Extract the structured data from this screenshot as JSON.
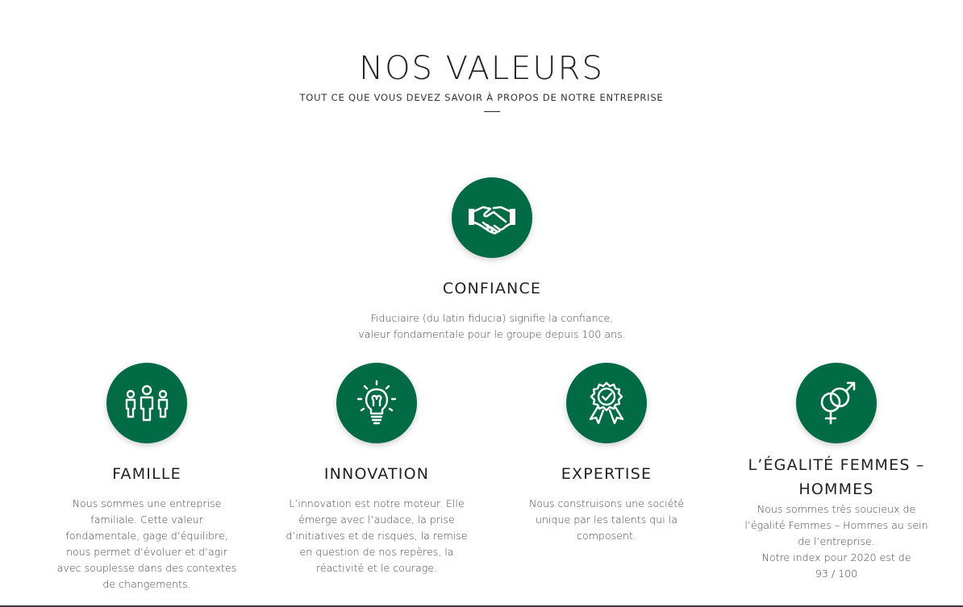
{
  "header": {
    "title": "NOS VALEURS",
    "subtitle": "TOUT CE QUE VOUS DEVEZ SAVOIR À PROPOS DE NOTRE ENTREPRISE"
  },
  "colors": {
    "accent": "#006b45"
  },
  "values": {
    "confiance": {
      "icon": "handshake-icon",
      "name": "CONFIANCE",
      "lines": [
        "Fiduciaire (du latin fiducia) signifie la confiance,",
        "valeur fondamentale pour le groupe depuis 100 ans."
      ]
    },
    "famille": {
      "icon": "family-icon",
      "name": "FAMILLE",
      "lines": [
        "Nous sommes une entreprise",
        "familiale. Cette valeur",
        "fondamentale, gage d’équilibre,",
        "nous permet d’évoluer et d’agir",
        "avec souplesse dans des contextes",
        "de changements."
      ]
    },
    "innovation": {
      "icon": "lightbulb-icon",
      "name": "INNOVATION",
      "lines": [
        "L’innovation est notre moteur. Elle",
        "émerge avec l’audace, la prise",
        "d’initiatives et de risques, la remise",
        "en question de nos repères, la",
        "réactivité et le courage."
      ]
    },
    "expertise": {
      "icon": "award-badge-icon",
      "name": "EXPERTISE",
      "lines": [
        "Nous construisons une société",
        "unique par les talents qui la",
        "composent."
      ]
    },
    "egalite": {
      "icon": "gender-equality-icon",
      "name_line1": "L’ÉGALITÉ FEMMES –",
      "name_line2": "HOMMES",
      "lines": [
        "Nous sommes très soucieux de",
        "l’égalité Femmes – Hommes au sein",
        "de l’entreprise.",
        "Notre index pour 2020 est de",
        "93 / 100"
      ]
    }
  }
}
